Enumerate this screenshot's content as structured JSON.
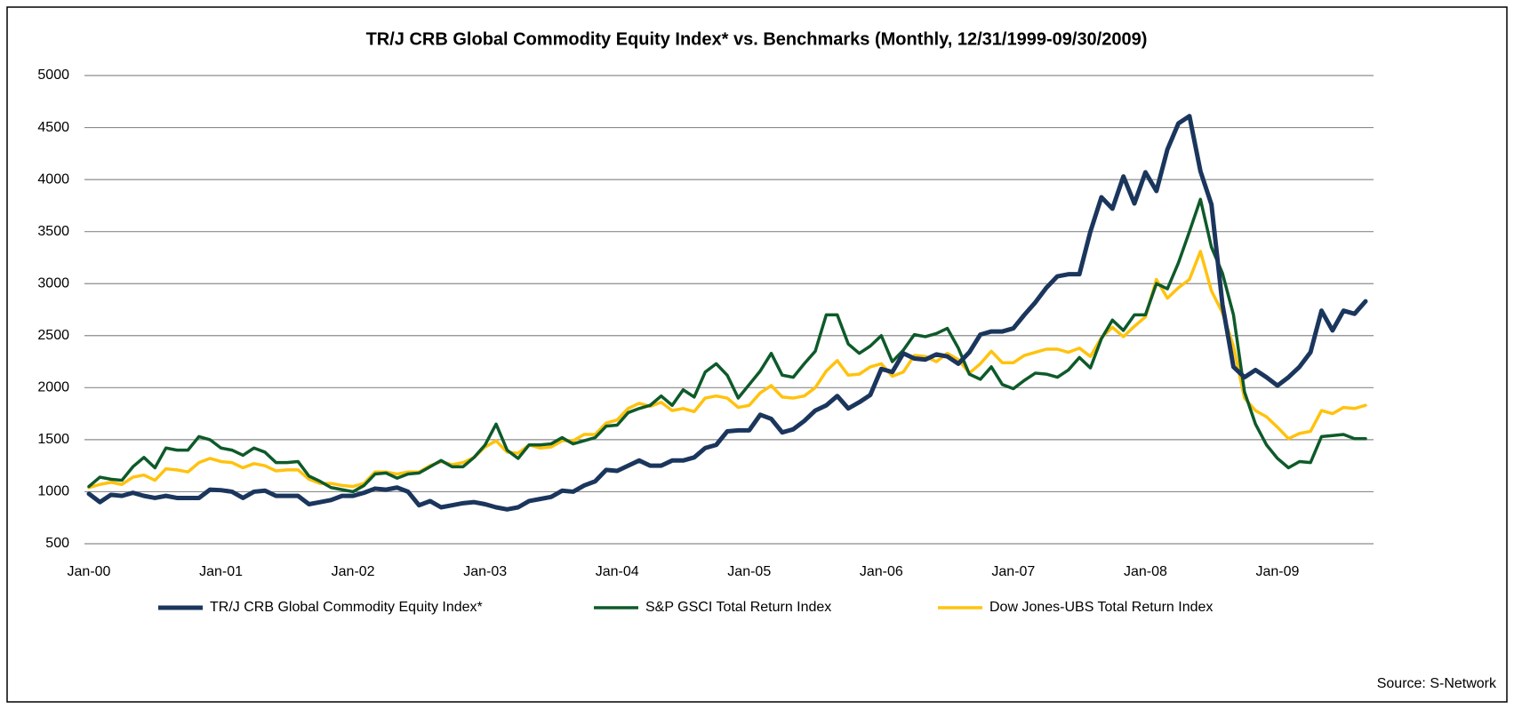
{
  "chart_data": {
    "type": "line",
    "title": "TR/J CRB Global Commodity Equity Index* vs. Benchmarks (Monthly, 12/31/1999-09/30/2009)",
    "source": "Source: S-Network",
    "categories": [
      "Jan-00",
      null,
      null,
      null,
      null,
      null,
      null,
      null,
      null,
      null,
      null,
      null,
      "Jan-01",
      null,
      null,
      null,
      null,
      null,
      null,
      null,
      null,
      null,
      null,
      null,
      "Jan-02",
      null,
      null,
      null,
      null,
      null,
      null,
      null,
      null,
      null,
      null,
      null,
      "Jan-03",
      null,
      null,
      null,
      null,
      null,
      null,
      null,
      null,
      null,
      null,
      null,
      "Jan-04",
      null,
      null,
      null,
      null,
      null,
      null,
      null,
      null,
      null,
      null,
      null,
      "Jan-05",
      null,
      null,
      null,
      null,
      null,
      null,
      null,
      null,
      null,
      null,
      null,
      "Jan-06",
      null,
      null,
      null,
      null,
      null,
      null,
      null,
      null,
      null,
      null,
      null,
      "Jan-07",
      null,
      null,
      null,
      null,
      null,
      null,
      null,
      null,
      null,
      null,
      null,
      "Jan-08",
      null,
      null,
      null,
      null,
      null,
      null,
      null,
      null,
      null,
      null,
      null,
      "Jan-09",
      null,
      null,
      null,
      null,
      null,
      null,
      null,
      null
    ],
    "series": [
      {
        "name": "TR/J CRB Global Commodity Equity Index*",
        "color": "#1b365d",
        "width": 5,
        "values": [
          980,
          900,
          970,
          960,
          990,
          960,
          940,
          960,
          940,
          940,
          940,
          1020,
          1015,
          1000,
          940,
          1000,
          1010,
          960,
          960,
          960,
          880,
          900,
          920,
          960,
          960,
          990,
          1030,
          1020,
          1040,
          1000,
          870,
          910,
          850,
          870,
          890,
          900,
          880,
          850,
          830,
          850,
          910,
          930,
          950,
          1010,
          1000,
          1060,
          1100,
          1210,
          1200,
          1250,
          1300,
          1250,
          1250,
          1300,
          1300,
          1330,
          1420,
          1450,
          1580,
          1590,
          1590,
          1740,
          1700,
          1570,
          1600,
          1680,
          1780,
          1830,
          1920,
          1800,
          1860,
          1930,
          2180,
          2150,
          2330,
          2280,
          2270,
          2320,
          2300,
          2230,
          2340,
          2510,
          2540,
          2540,
          2570,
          2700,
          2820,
          2960,
          3070,
          3090,
          3090,
          3500,
          3830,
          3720,
          4030,
          3770,
          4070,
          3890,
          4290,
          4540,
          4610,
          4080,
          3760,
          2800,
          2200,
          2100,
          2170,
          2100,
          2020,
          2100,
          2200,
          2340,
          2740,
          2550,
          2740,
          2710,
          2830
        ]
      },
      {
        "name": "S&P GSCI Total Return Index",
        "color": "#0e5a2a",
        "width": 3.5,
        "values": [
          1050,
          1140,
          1120,
          1110,
          1240,
          1330,
          1230,
          1420,
          1400,
          1400,
          1530,
          1500,
          1420,
          1400,
          1350,
          1420,
          1380,
          1280,
          1280,
          1290,
          1150,
          1100,
          1040,
          1020,
          1000,
          1060,
          1170,
          1180,
          1130,
          1170,
          1180,
          1240,
          1300,
          1240,
          1240,
          1330,
          1450,
          1650,
          1400,
          1320,
          1450,
          1450,
          1460,
          1520,
          1460,
          1490,
          1520,
          1630,
          1640,
          1760,
          1800,
          1830,
          1920,
          1830,
          1980,
          1910,
          2150,
          2230,
          2120,
          1900,
          2030,
          2160,
          2330,
          2120,
          2100,
          2230,
          2350,
          2700,
          2700,
          2420,
          2330,
          2400,
          2500,
          2250,
          2360,
          2510,
          2490,
          2520,
          2570,
          2380,
          2130,
          2080,
          2200,
          2030,
          1990,
          2070,
          2140,
          2130,
          2100,
          2170,
          2290,
          2190,
          2470,
          2650,
          2550,
          2700,
          2700,
          3000,
          2950,
          3200,
          3500,
          3810,
          3350,
          3100,
          2700,
          1960,
          1650,
          1450,
          1320,
          1230,
          1290,
          1280,
          1530,
          1540,
          1550,
          1510,
          1510
        ]
      },
      {
        "name": "Dow Jones-UBS Total Return Index",
        "color": "#ffc20e",
        "width": 3.5,
        "values": [
          1040,
          1070,
          1090,
          1070,
          1140,
          1160,
          1110,
          1220,
          1210,
          1190,
          1280,
          1320,
          1290,
          1280,
          1230,
          1270,
          1250,
          1200,
          1210,
          1210,
          1120,
          1080,
          1080,
          1060,
          1050,
          1080,
          1190,
          1190,
          1170,
          1190,
          1190,
          1250,
          1290,
          1260,
          1280,
          1330,
          1430,
          1490,
          1380,
          1370,
          1450,
          1420,
          1430,
          1490,
          1490,
          1550,
          1550,
          1660,
          1690,
          1800,
          1850,
          1820,
          1860,
          1780,
          1800,
          1770,
          1900,
          1920,
          1900,
          1810,
          1830,
          1950,
          2020,
          1910,
          1900,
          1920,
          2000,
          2160,
          2260,
          2120,
          2130,
          2200,
          2230,
          2110,
          2150,
          2310,
          2300,
          2250,
          2330,
          2270,
          2140,
          2230,
          2350,
          2240,
          2240,
          2310,
          2340,
          2370,
          2370,
          2340,
          2380,
          2300,
          2480,
          2580,
          2490,
          2590,
          2680,
          3040,
          2860,
          2960,
          3040,
          3310,
          2930,
          2720,
          2400,
          1900,
          1780,
          1720,
          1620,
          1510,
          1560,
          1580,
          1780,
          1750,
          1810,
          1800,
          1830
        ]
      }
    ],
    "ylim": [
      500,
      5000
    ],
    "yticks": [
      500,
      1000,
      1500,
      2000,
      2500,
      3000,
      3500,
      4000,
      4500,
      5000
    ],
    "grid": true,
    "legend": "bottom"
  }
}
